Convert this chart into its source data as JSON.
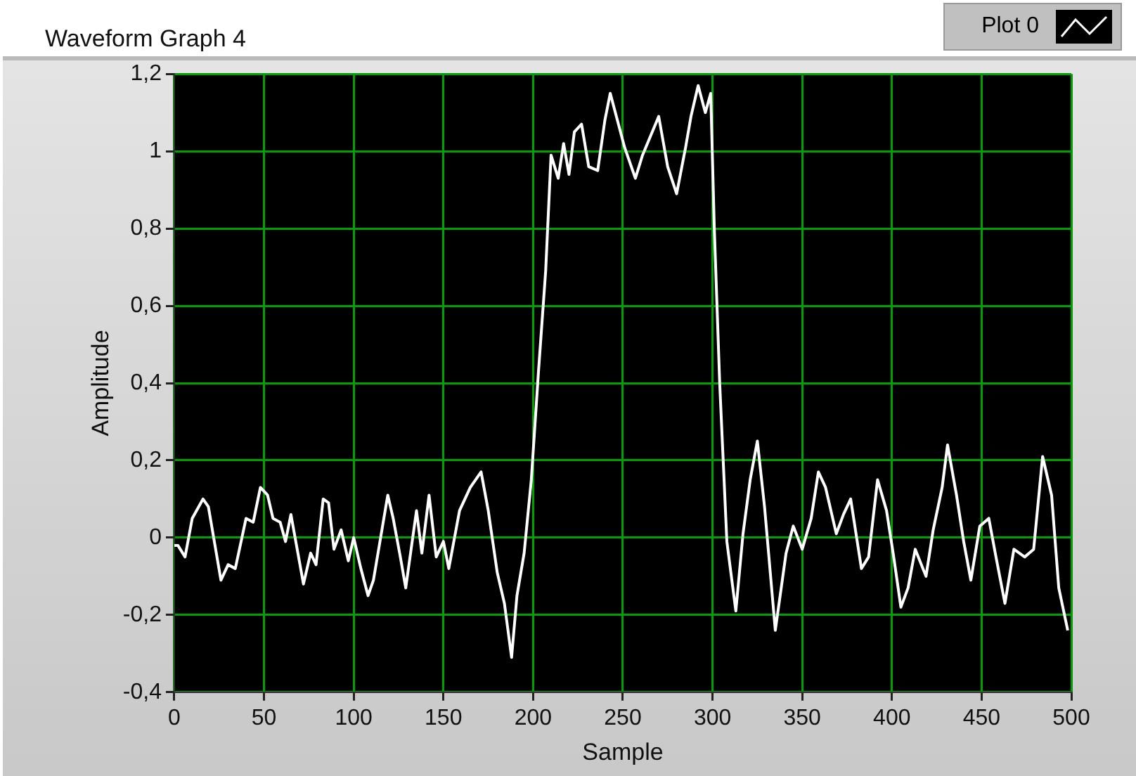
{
  "chart_data": {
    "type": "line",
    "title": "Waveform Graph 4",
    "xlabel": "Sample",
    "ylabel": "Amplitude",
    "legend": "top right",
    "grid": true,
    "marker": "none",
    "line_style": "solid",
    "xlim": [
      0,
      500
    ],
    "xticks": [
      0,
      50,
      100,
      150,
      200,
      250,
      300,
      350,
      400,
      450,
      500
    ],
    "ylim": [
      -0.4,
      1.2
    ],
    "yticks": [
      {
        "value": -0.4,
        "label": "-0,4"
      },
      {
        "value": -0.2,
        "label": "-0,2"
      },
      0,
      {
        "value": 0.2,
        "label": "0,2"
      },
      {
        "value": 0.4,
        "label": "0,4"
      },
      {
        "value": 0.6,
        "label": "0,6"
      },
      {
        "value": 0.8,
        "label": "0,8"
      },
      1,
      {
        "value": 1.2,
        "label": "1,2"
      }
    ],
    "series": [
      {
        "name": "Plot 0",
        "color": "#ffffff",
        "x": [
          0,
          2,
          6,
          10,
          16,
          19,
          26,
          30,
          34,
          40,
          44,
          48,
          52,
          55,
          59,
          62,
          65,
          72,
          76,
          79,
          83,
          86,
          89,
          93,
          97,
          100,
          104,
          108,
          111,
          119,
          122,
          126,
          129,
          135,
          138,
          142,
          146,
          150,
          153,
          159,
          165,
          171,
          175,
          180,
          184,
          188,
          191,
          195,
          199,
          203,
          207,
          210,
          214,
          217,
          220,
          223,
          227,
          231,
          236,
          240,
          243,
          247,
          251,
          257,
          261,
          270,
          275,
          280,
          285,
          288,
          292,
          296,
          299,
          301,
          304,
          308,
          313,
          317,
          321,
          325,
          329,
          335,
          341,
          345,
          350,
          355,
          359,
          363,
          369,
          373,
          377,
          383,
          387,
          392,
          397,
          401,
          405,
          409,
          413,
          419,
          423,
          428,
          431,
          436,
          440,
          444,
          449,
          454,
          458,
          463,
          468,
          474,
          479,
          484,
          489,
          493,
          498
        ],
        "values": [
          -0.02,
          -0.02,
          -0.05,
          0.05,
          0.1,
          0.08,
          -0.11,
          -0.07,
          -0.08,
          0.05,
          0.04,
          0.13,
          0.11,
          0.05,
          0.04,
          -0.01,
          0.06,
          -0.12,
          -0.04,
          -0.07,
          0.1,
          0.09,
          -0.03,
          0.02,
          -0.06,
          0,
          -0.08,
          -0.15,
          -0.11,
          0.11,
          0.05,
          -0.05,
          -0.13,
          0.07,
          -0.04,
          0.11,
          -0.05,
          -0.01,
          -0.08,
          0.07,
          0.13,
          0.17,
          0.07,
          -0.09,
          -0.17,
          -0.31,
          -0.15,
          -0.04,
          0.15,
          0.43,
          0.69,
          0.99,
          0.93,
          1.02,
          0.94,
          1.05,
          1.07,
          0.96,
          0.95,
          1.08,
          1.15,
          1.08,
          1.01,
          0.93,
          0.99,
          1.09,
          0.96,
          0.89,
          1.01,
          1.09,
          1.17,
          1.1,
          1.15,
          0.8,
          0.4,
          -0.01,
          -0.19,
          0.01,
          0.15,
          0.25,
          0.08,
          -0.24,
          -0.04,
          0.03,
          -0.03,
          0.05,
          0.17,
          0.13,
          0.01,
          0.06,
          0.1,
          -0.08,
          -0.05,
          0.15,
          0.07,
          -0.05,
          -0.18,
          -0.13,
          -0.03,
          -0.1,
          0.02,
          0.13,
          0.24,
          0.11,
          -0.01,
          -0.11,
          0.03,
          0.05,
          -0.05,
          -0.17,
          -0.03,
          -0.05,
          -0.03,
          0.21,
          0.11,
          -0.13,
          -0.24
        ]
      }
    ]
  }
}
